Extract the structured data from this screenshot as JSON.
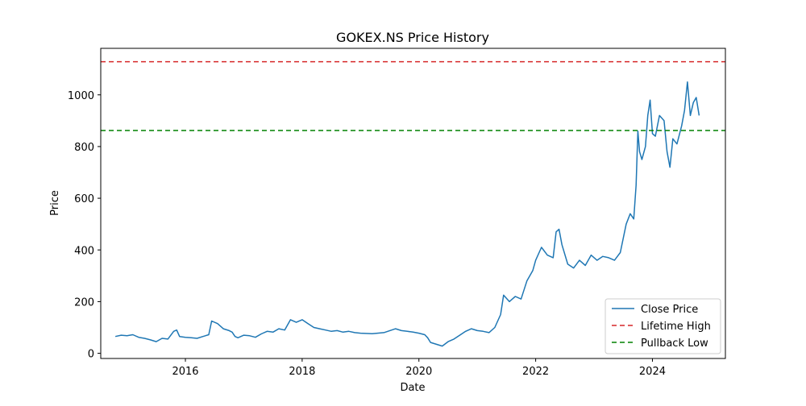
{
  "chart_data": {
    "type": "line",
    "title": "GOKEX.NS Price History",
    "xlabel": "Date",
    "ylabel": "Price",
    "xlim": [
      2014.55,
      2025.25
    ],
    "ylim": [
      -20,
      1180
    ],
    "x_ticks": [
      {
        "value": 2016,
        "label": "2016"
      },
      {
        "value": 2018,
        "label": "2018"
      },
      {
        "value": 2020,
        "label": "2020"
      },
      {
        "value": 2022,
        "label": "2022"
      },
      {
        "value": 2024,
        "label": "2024"
      }
    ],
    "y_ticks": [
      {
        "value": 0,
        "label": "0"
      },
      {
        "value": 200,
        "label": "200"
      },
      {
        "value": 400,
        "label": "400"
      },
      {
        "value": 600,
        "label": "600"
      },
      {
        "value": 800,
        "label": "800"
      },
      {
        "value": 1000,
        "label": "1000"
      }
    ],
    "grid": false,
    "legend_position": "bottom-right",
    "series": [
      {
        "name": "Close Price",
        "color": "#1f77b4",
        "style": "solid",
        "points": [
          [
            2014.8,
            65
          ],
          [
            2014.9,
            70
          ],
          [
            2015.0,
            68
          ],
          [
            2015.1,
            72
          ],
          [
            2015.2,
            62
          ],
          [
            2015.3,
            58
          ],
          [
            2015.4,
            52
          ],
          [
            2015.5,
            45
          ],
          [
            2015.6,
            58
          ],
          [
            2015.7,
            55
          ],
          [
            2015.8,
            85
          ],
          [
            2015.85,
            90
          ],
          [
            2015.9,
            65
          ],
          [
            2016.0,
            62
          ],
          [
            2016.1,
            60
          ],
          [
            2016.2,
            58
          ],
          [
            2016.3,
            65
          ],
          [
            2016.4,
            72
          ],
          [
            2016.45,
            125
          ],
          [
            2016.55,
            115
          ],
          [
            2016.65,
            95
          ],
          [
            2016.75,
            88
          ],
          [
            2016.8,
            82
          ],
          [
            2016.85,
            65
          ],
          [
            2016.9,
            60
          ],
          [
            2017.0,
            70
          ],
          [
            2017.1,
            68
          ],
          [
            2017.2,
            62
          ],
          [
            2017.3,
            75
          ],
          [
            2017.4,
            85
          ],
          [
            2017.5,
            82
          ],
          [
            2017.6,
            95
          ],
          [
            2017.7,
            90
          ],
          [
            2017.8,
            130
          ],
          [
            2017.9,
            120
          ],
          [
            2018.0,
            130
          ],
          [
            2018.1,
            115
          ],
          [
            2018.2,
            100
          ],
          [
            2018.3,
            95
          ],
          [
            2018.4,
            90
          ],
          [
            2018.5,
            85
          ],
          [
            2018.6,
            88
          ],
          [
            2018.7,
            82
          ],
          [
            2018.8,
            85
          ],
          [
            2018.9,
            80
          ],
          [
            2019.0,
            78
          ],
          [
            2019.2,
            76
          ],
          [
            2019.4,
            80
          ],
          [
            2019.6,
            95
          ],
          [
            2019.7,
            88
          ],
          [
            2019.8,
            85
          ],
          [
            2019.9,
            82
          ],
          [
            2020.0,
            78
          ],
          [
            2020.1,
            72
          ],
          [
            2020.15,
            60
          ],
          [
            2020.2,
            42
          ],
          [
            2020.3,
            35
          ],
          [
            2020.4,
            28
          ],
          [
            2020.5,
            45
          ],
          [
            2020.6,
            55
          ],
          [
            2020.7,
            70
          ],
          [
            2020.8,
            85
          ],
          [
            2020.9,
            95
          ],
          [
            2021.0,
            88
          ],
          [
            2021.1,
            85
          ],
          [
            2021.2,
            80
          ],
          [
            2021.3,
            100
          ],
          [
            2021.4,
            150
          ],
          [
            2021.45,
            225
          ],
          [
            2021.55,
            200
          ],
          [
            2021.65,
            220
          ],
          [
            2021.75,
            210
          ],
          [
            2021.85,
            280
          ],
          [
            2021.95,
            320
          ],
          [
            2022.0,
            360
          ],
          [
            2022.1,
            410
          ],
          [
            2022.2,
            380
          ],
          [
            2022.3,
            370
          ],
          [
            2022.35,
            470
          ],
          [
            2022.4,
            480
          ],
          [
            2022.45,
            420
          ],
          [
            2022.55,
            345
          ],
          [
            2022.65,
            330
          ],
          [
            2022.75,
            360
          ],
          [
            2022.85,
            340
          ],
          [
            2022.95,
            380
          ],
          [
            2023.05,
            360
          ],
          [
            2023.15,
            375
          ],
          [
            2023.25,
            370
          ],
          [
            2023.35,
            360
          ],
          [
            2023.45,
            390
          ],
          [
            2023.55,
            500
          ],
          [
            2023.62,
            540
          ],
          [
            2023.68,
            520
          ],
          [
            2023.72,
            650
          ],
          [
            2023.75,
            860
          ],
          [
            2023.78,
            780
          ],
          [
            2023.82,
            750
          ],
          [
            2023.88,
            800
          ],
          [
            2023.92,
            920
          ],
          [
            2023.96,
            980
          ],
          [
            2024.0,
            850
          ],
          [
            2024.05,
            840
          ],
          [
            2024.12,
            920
          ],
          [
            2024.2,
            900
          ],
          [
            2024.25,
            780
          ],
          [
            2024.3,
            720
          ],
          [
            2024.35,
            830
          ],
          [
            2024.42,
            810
          ],
          [
            2024.5,
            880
          ],
          [
            2024.55,
            940
          ],
          [
            2024.6,
            1050
          ],
          [
            2024.65,
            920
          ],
          [
            2024.7,
            970
          ],
          [
            2024.75,
            990
          ],
          [
            2024.8,
            920
          ]
        ]
      },
      {
        "name": "Lifetime High",
        "color": "#d62728",
        "style": "dashed",
        "hline": 1128
      },
      {
        "name": "Pullback Low",
        "color": "#008000",
        "style": "dashed",
        "hline": 862
      }
    ]
  }
}
